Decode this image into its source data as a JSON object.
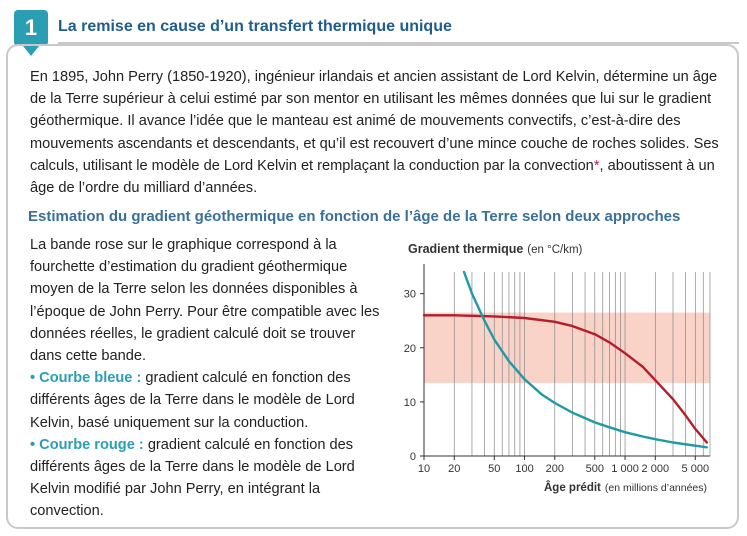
{
  "header": {
    "number": "1",
    "title": "La remise en cause d’un transfert thermique unique"
  },
  "intro": {
    "before_star": "En 1895, John Perry (1850-1920), ingénieur irlandais et ancien assistant de Lord Kelvin, détermine un âge de la Terre supérieur à celui estimé par son mentor en utilisant les mêmes données que lui sur le gradient géothermique. Il avance l’idée que le manteau est animé de mouvements convectifs, c’est-à-dire des mouvements ascendants et descendants, et qu’il est recouvert d’une mince couche de roches solides. Ses calculs, utilisant le modèle de Lord Kelvin et remplaçant la conduction par la convection",
    "star": "*",
    "after_star": ", aboutissent à un âge de l’ordre du milliard d’années."
  },
  "section": {
    "subtitle": "Estimation du gradient géothermique en fonction de l’âge de la Terre selon deux approches",
    "paragraph": "La bande rose sur le graphique correspond à la fourchette d’estimation du gradient géothermique moyen de la Terre selon les données disponibles à l’époque de John Perry. Pour être compatible avec les données réelles, le gradient calculé doit se trouver dans cette bande.",
    "blue_label": "• Courbe bleue :",
    "blue_text": " gradient calculé en fonction des différents âges de la Terre dans le modèle de Lord Kelvin, basé uniquement sur la conduction.",
    "red_label": "• Courbe rouge :",
    "red_text": " gradient calculé en fonction des différents âges de la Terre dans le modèle de Lord Kelvin modifié par John Perry, en intégrant la convection."
  },
  "colors": {
    "accent": "#2a9fb3",
    "title": "#1f5d8d",
    "subtitle": "#3a6f98",
    "band": "#f9d2c8",
    "red_curve": "#b71c2a",
    "blue_curve": "#1f9aa5"
  },
  "chart_data": {
    "type": "line",
    "ylabel": "Gradient thermique",
    "ylabel_unit": "(en °C/km)",
    "xlabel": "Âge prédit",
    "xlabel_unit": "(en millions d’années)",
    "x_scale": "log",
    "xlim": [
      10,
      7000
    ],
    "ylim": [
      0,
      34
    ],
    "y_ticks": [
      "0",
      "10",
      "20",
      "30"
    ],
    "y_tick_values": [
      0,
      10,
      20,
      30
    ],
    "x_ticks": [
      "10",
      "20",
      "50",
      "100",
      "200",
      "500",
      "1 000",
      "2 000",
      "5 000"
    ],
    "x_tick_values": [
      10,
      20,
      50,
      100,
      200,
      500,
      1000,
      2000,
      5000
    ],
    "band": [
      13.5,
      26.5
    ],
    "grid": "vertical",
    "series": [
      {
        "color": "red",
        "x": [
          10,
          20,
          50,
          100,
          200,
          300,
          500,
          700,
          1000,
          1500,
          2000,
          3000,
          4000,
          5000,
          6500
        ],
        "y": [
          26,
          26,
          25.8,
          25.5,
          24.8,
          24,
          22.5,
          21,
          19,
          16.5,
          14,
          10.5,
          7.5,
          5,
          2.5
        ]
      },
      {
        "color": "blue",
        "x": [
          25,
          30,
          40,
          50,
          70,
          100,
          150,
          200,
          300,
          500,
          700,
          1000,
          1500,
          2000,
          3000,
          5000,
          6500
        ],
        "y": [
          34,
          30,
          25,
          21.5,
          17.5,
          14.2,
          11.3,
          9.8,
          8,
          6.2,
          5.3,
          4.4,
          3.6,
          3.1,
          2.5,
          1.9,
          1.6
        ]
      }
    ]
  }
}
